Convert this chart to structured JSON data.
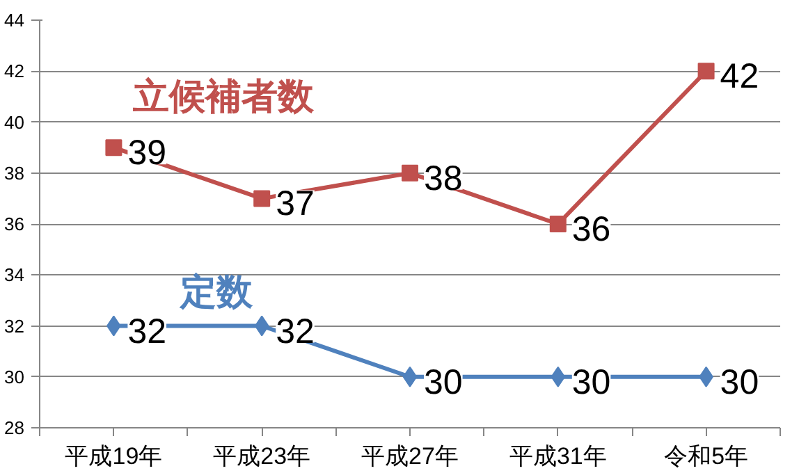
{
  "chart_data": {
    "type": "line",
    "categories": [
      "平成19年",
      "平成23年",
      "平成27年",
      "平成31年",
      "令和5年"
    ],
    "series": [
      {
        "name": "立候補者数",
        "color": "#c0504d",
        "marker": "square",
        "values": [
          39,
          37,
          38,
          36,
          42
        ]
      },
      {
        "name": "定数",
        "color": "#4f81bd",
        "marker": "diamond",
        "values": [
          32,
          32,
          30,
          30,
          30
        ]
      }
    ],
    "ylim": [
      28,
      44
    ],
    "yticks": [
      28,
      30,
      32,
      34,
      36,
      38,
      40,
      42,
      44
    ],
    "grid": "y",
    "legend": false,
    "data_labels": true,
    "line_style": "solid"
  }
}
